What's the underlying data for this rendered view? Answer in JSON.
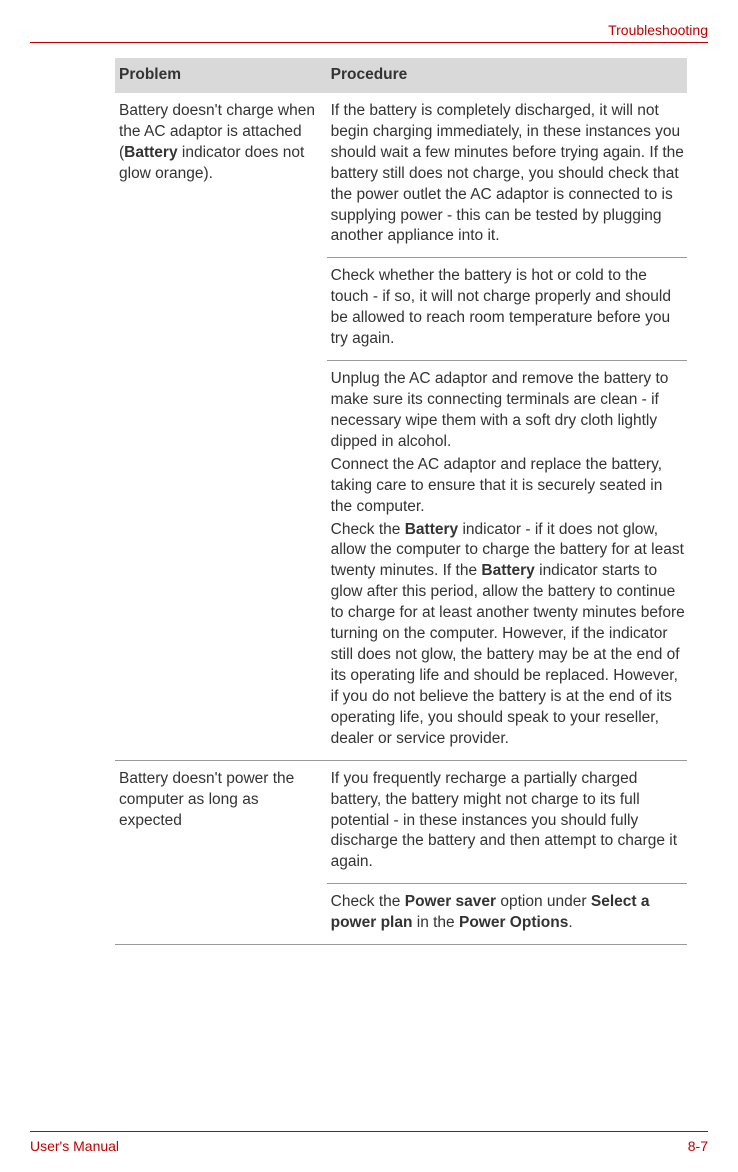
{
  "header": {
    "section_title": "Troubleshooting"
  },
  "table": {
    "headers": {
      "col1": "Problem",
      "col2": "Procedure"
    },
    "row1": {
      "problem_pre": "Battery doesn't charge when the AC adaptor is attached (",
      "problem_bold": "Battery",
      "problem_post": " indicator does not glow orange).",
      "proc1": "If the battery is completely discharged, it will not begin charging immediately, in these instances you should wait a few minutes before trying again. If the battery still does not charge, you should check that the power outlet the AC adaptor is connected to is supplying power - this can be tested by plugging another appliance into it.",
      "proc2": "Check whether the battery is hot or cold to the touch - if so, it will not charge properly and should be allowed to reach room temperature before you try again.",
      "proc3a": "Unplug the AC adaptor and remove the battery to make sure its connecting terminals are clean - if necessary wipe them with a soft dry cloth lightly dipped in alcohol.",
      "proc3b": "Connect the AC adaptor and replace the battery, taking care to ensure that it is securely seated in the computer.",
      "proc3c_1": "Check the ",
      "proc3c_b1": "Battery",
      "proc3c_2": " indicator - if it does not glow, allow the computer to charge the battery for at least twenty minutes. If the ",
      "proc3c_b2": "Battery",
      "proc3c_3": " indicator starts to glow after this period, allow the battery to continue to charge for at least another twenty minutes before turning on the computer. However, if the indicator still does not glow, the battery may be at the end of its operating life and should be replaced. However, if you do not believe the battery is at the end of its operating life, you should speak to your reseller, dealer or service provider."
    },
    "row2": {
      "problem": "Battery doesn't power the computer as long as expected",
      "proc1": "If you frequently recharge a partially charged battery, the battery might not charge to its full potential - in these instances you should fully discharge the battery and then attempt to charge it again.",
      "proc2_1": "Check the ",
      "proc2_b1": "Power saver",
      "proc2_2": " option under ",
      "proc2_b2": "Select a power plan",
      "proc2_3": " in the ",
      "proc2_b3": "Power Options",
      "proc2_4": "."
    }
  },
  "footer": {
    "left": "User's Manual",
    "right": "8-7"
  },
  "colors": {
    "accent": "#c00000",
    "header_bg": "#d9d9d9",
    "text": "#333333",
    "border": "#999999"
  }
}
